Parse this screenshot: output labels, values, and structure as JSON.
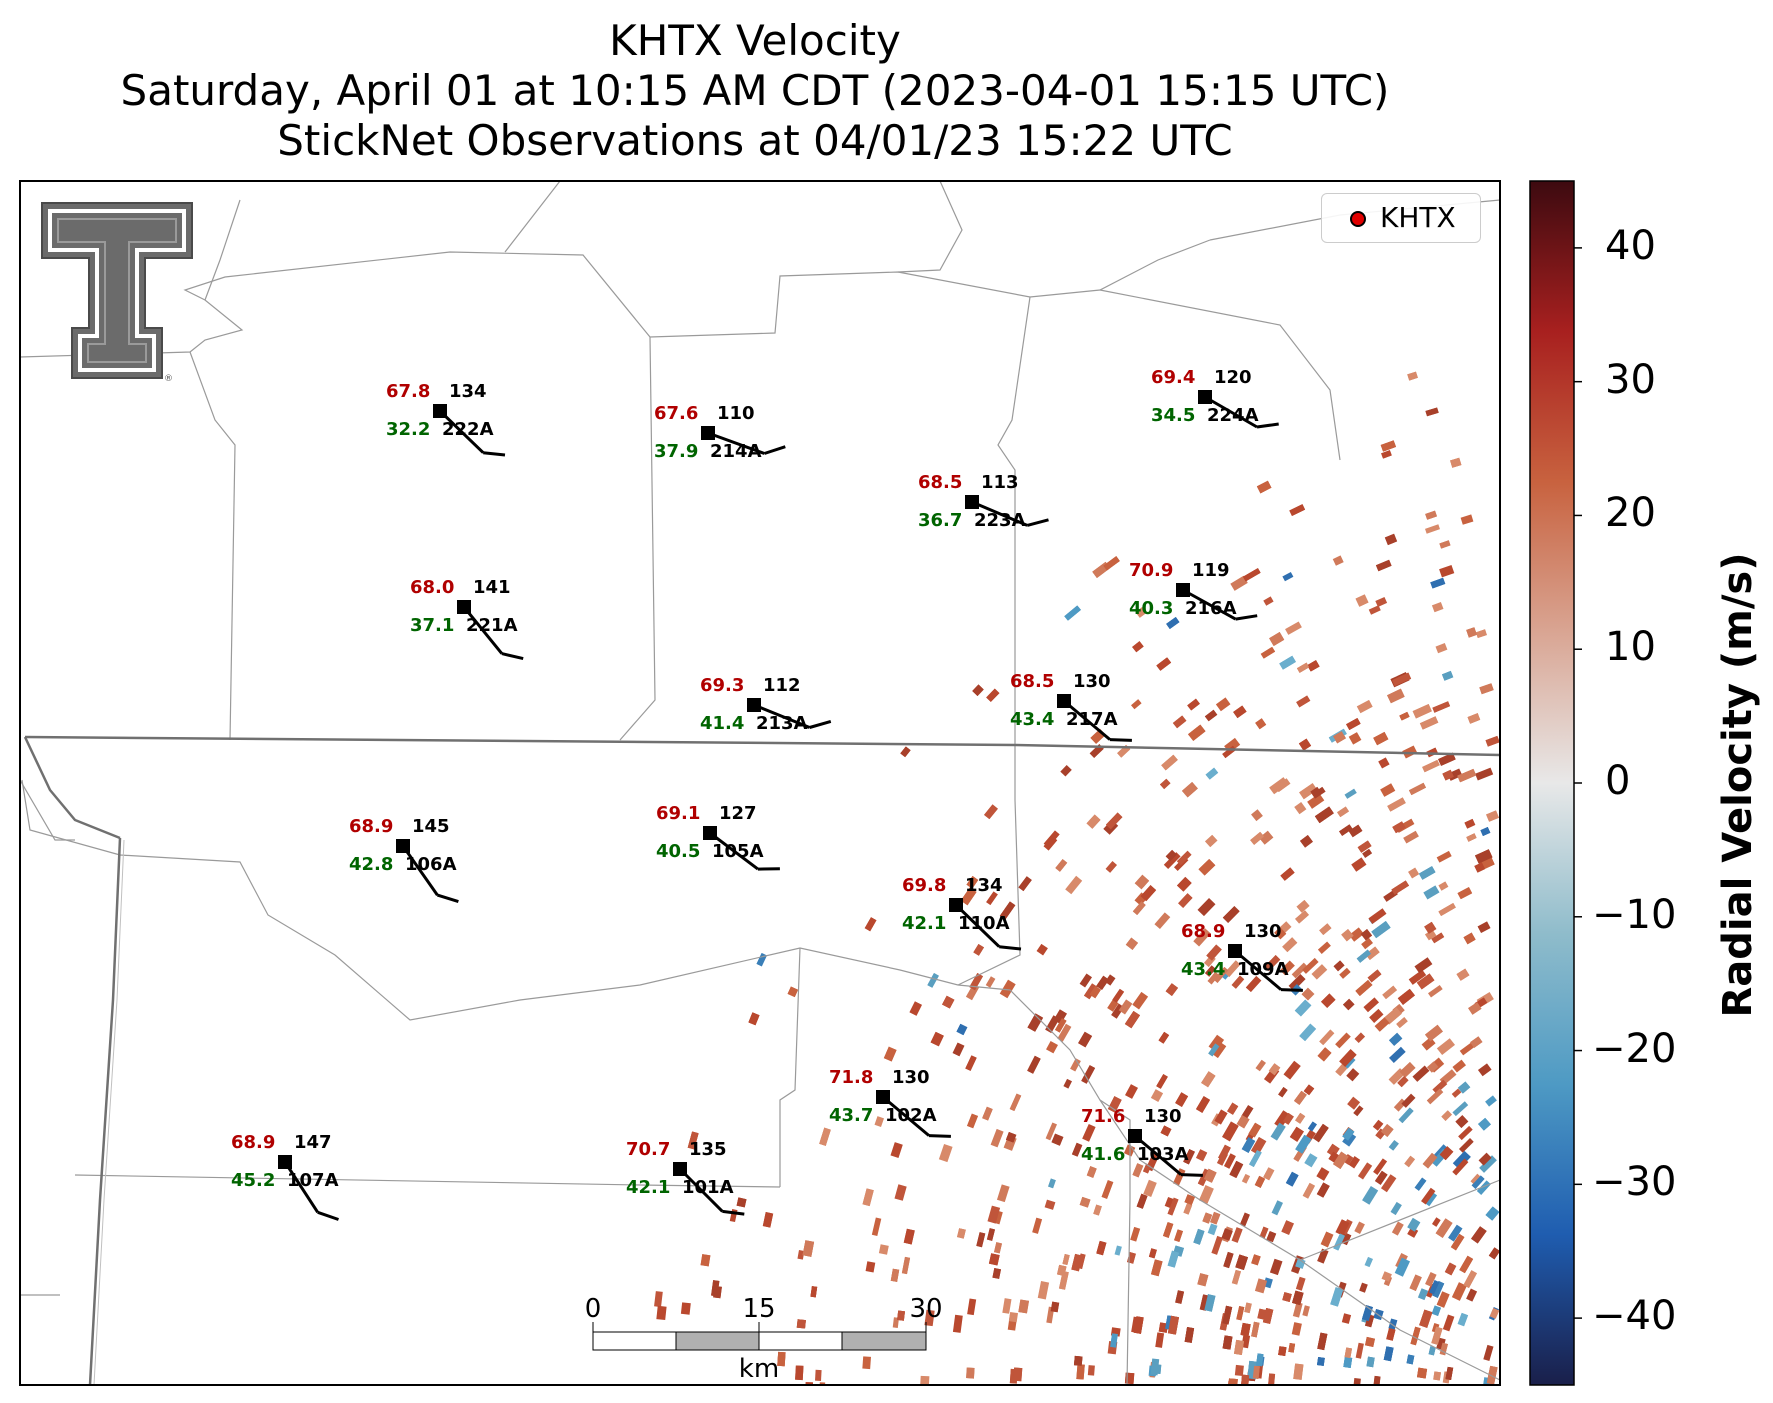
{
  "title": {
    "line1": "KHTX Velocity",
    "line2": "Saturday, April 01 at 10:15 AM CDT (2023-04-01 15:15 UTC)",
    "line3": "StickNet Observations at 04/01/23 15:22 UTC"
  },
  "legend": {
    "label": "KHTX",
    "marker_color": "#e00000"
  },
  "colorbar": {
    "title": "Radial Velocity (m/s)",
    "ticks": [
      "40",
      "30",
      "20",
      "10",
      "0",
      "−10",
      "−20",
      "−30",
      "−40"
    ],
    "range": [
      -45,
      45
    ],
    "colors": [
      "#1a1f4a",
      "#1f5db0",
      "#4e9ac4",
      "#8fbccb",
      "#e8e8e8",
      "#d9a593",
      "#c8623f",
      "#a8201f",
      "#3d0a10"
    ]
  },
  "scale_bar": {
    "ticks": [
      "0",
      "15",
      "30"
    ],
    "unit": "km"
  },
  "logo": {
    "name": "Texas Tech Double T",
    "color": "#666666"
  },
  "stations": [
    {
      "id": "222A",
      "temp": "67.8",
      "dir": "134",
      "dew": "32.2"
    },
    {
      "id": "214A",
      "temp": "67.6",
      "dir": "110",
      "dew": "37.9"
    },
    {
      "id": "223A",
      "temp": "68.5",
      "dir": "113",
      "dew": "36.7"
    },
    {
      "id": "224A",
      "temp": "69.4",
      "dir": "120",
      "dew": "34.5"
    },
    {
      "id": "221A",
      "temp": "68.0",
      "dir": "141",
      "dew": "37.1"
    },
    {
      "id": "216A",
      "temp": "70.9",
      "dir": "119",
      "dew": "40.3"
    },
    {
      "id": "213A",
      "temp": "69.3",
      "dir": "112",
      "dew": "41.4"
    },
    {
      "id": "217A",
      "temp": "68.5",
      "dir": "130",
      "dew": "43.4"
    },
    {
      "id": "106A",
      "temp": "68.9",
      "dir": "145",
      "dew": "42.8"
    },
    {
      "id": "105A",
      "temp": "69.1",
      "dir": "127",
      "dew": "40.5"
    },
    {
      "id": "110A",
      "temp": "69.8",
      "dir": "134",
      "dew": "42.1"
    },
    {
      "id": "109A",
      "temp": "68.9",
      "dir": "130",
      "dew": "43.4"
    },
    {
      "id": "102A",
      "temp": "71.8",
      "dir": "130",
      "dew": "43.7"
    },
    {
      "id": "103A",
      "temp": "71.6",
      "dir": "130",
      "dew": "41.6"
    },
    {
      "id": "107A",
      "temp": "68.9",
      "dir": "147",
      "dew": "45.2"
    },
    {
      "id": "101A",
      "temp": "70.7",
      "dir": "135",
      "dew": "42.1"
    }
  ]
}
